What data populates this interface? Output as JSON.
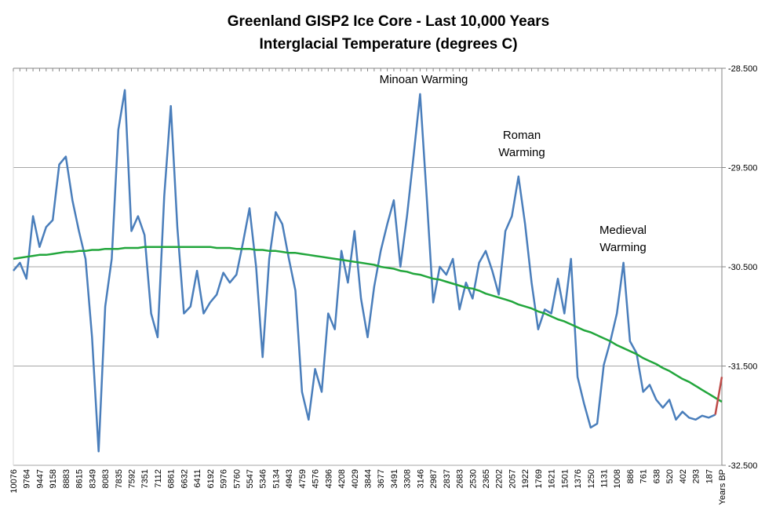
{
  "chart_data": {
    "type": "line",
    "title": [
      "Greenland GISP2 Ice Core - Last 10,000 Years",
      "Interglacial Temperature (degrees C)"
    ],
    "categories": [
      "10076",
      null,
      "9764",
      null,
      "9447",
      null,
      "9158",
      null,
      "8883",
      null,
      "8615",
      null,
      "8349",
      null,
      "8083",
      null,
      "7835",
      null,
      "7592",
      null,
      "7351",
      null,
      "7112",
      null,
      "6861",
      null,
      "6632",
      null,
      "6411",
      null,
      "6192",
      null,
      "5976",
      null,
      "5760",
      null,
      "5547",
      null,
      "5346",
      null,
      "5134",
      null,
      "4943",
      null,
      "4759",
      null,
      "4576",
      null,
      "4396",
      null,
      "4208",
      null,
      "4029",
      null,
      "3844",
      null,
      "3677",
      null,
      "3491",
      null,
      "3308",
      null,
      "3146",
      null,
      "2987",
      null,
      "2837",
      null,
      "2683",
      null,
      "2530",
      null,
      "2365",
      null,
      "2202",
      null,
      "2057",
      null,
      "1922",
      null,
      "1769",
      null,
      "1621",
      null,
      "1501",
      null,
      "1376",
      null,
      "1250",
      null,
      "1131",
      null,
      "1008",
      null,
      "886",
      null,
      "761",
      null,
      "638",
      null,
      "520",
      null,
      "402",
      null,
      "293",
      null,
      "187",
      null,
      "Years BP"
    ],
    "series": [
      {
        "color": "#4a7ebb",
        "values": [
          -30.54,
          -30.46,
          -30.62,
          -29.99,
          -30.3,
          -30.1,
          -30.03,
          -29.47,
          -29.39,
          -29.83,
          -30.14,
          -30.42,
          -31.21,
          -32.36,
          -30.9,
          -30.42,
          -29.12,
          -28.72,
          -30.14,
          -29.99,
          -30.18,
          -30.97,
          -31.21,
          -29.79,
          -28.88,
          -30.1,
          -30.97,
          -30.9,
          -30.54,
          -30.97,
          -30.86,
          -30.78,
          -30.56,
          -30.66,
          -30.58,
          -30.26,
          -29.91,
          -30.5,
          -31.41,
          -30.42,
          -29.95,
          -30.07,
          -30.42,
          -30.74,
          -31.76,
          -32.04,
          -31.53,
          -31.76,
          -30.97,
          -31.13,
          -30.34,
          -30.66,
          -30.14,
          -30.82,
          -31.21,
          -30.7,
          -30.34,
          -30.07,
          -29.83,
          -30.5,
          -29.99,
          -29.39,
          -28.76,
          -29.79,
          -30.86,
          -30.5,
          -30.58,
          -30.42,
          -30.93,
          -30.66,
          -30.82,
          -30.46,
          -30.34,
          -30.54,
          -30.78,
          -30.14,
          -29.99,
          -29.59,
          -30.07,
          -30.66,
          -31.13,
          -30.93,
          -30.97,
          -30.62,
          -30.97,
          -30.42,
          -31.61,
          -31.88,
          -32.12,
          -32.08,
          -31.49,
          -31.25,
          -30.97,
          -30.46,
          -31.25,
          -31.37,
          -31.76,
          -31.69,
          -31.84,
          -31.92,
          -31.84,
          -32.04,
          -31.96,
          -32.02,
          -32.04,
          -32.0,
          -32.02,
          -31.99,
          null
        ]
      },
      {
        "color": "#22a63c",
        "values": [
          -30.42,
          -30.41,
          -30.4,
          -30.39,
          -30.38,
          -30.38,
          -30.37,
          -30.36,
          -30.35,
          -30.35,
          -30.34,
          -30.34,
          -30.33,
          -30.33,
          -30.32,
          -30.32,
          -30.32,
          -30.31,
          -30.31,
          -30.31,
          -30.3,
          -30.3,
          -30.3,
          -30.3,
          -30.3,
          -30.3,
          -30.3,
          -30.3,
          -30.3,
          -30.3,
          -30.3,
          -30.31,
          -30.31,
          -30.31,
          -30.32,
          -30.32,
          -30.32,
          -30.33,
          -30.33,
          -30.34,
          -30.34,
          -30.35,
          -30.36,
          -30.36,
          -30.37,
          -30.38,
          -30.39,
          -30.4,
          -30.41,
          -30.42,
          -30.43,
          -30.44,
          -30.45,
          -30.46,
          -30.47,
          -30.48,
          -30.5,
          -30.51,
          -30.52,
          -30.54,
          -30.55,
          -30.57,
          -30.58,
          -30.6,
          -30.62,
          -30.63,
          -30.65,
          -30.67,
          -30.69,
          -30.71,
          -30.72,
          -30.74,
          -30.77,
          -30.79,
          -30.81,
          -30.83,
          -30.85,
          -30.88,
          -30.9,
          -30.92,
          -30.95,
          -30.97,
          -31.0,
          -31.03,
          -31.05,
          -31.08,
          -31.11,
          -31.14,
          -31.16,
          -31.19,
          -31.22,
          -31.25,
          -31.29,
          -31.32,
          -31.35,
          -31.38,
          -31.42,
          -31.45,
          -31.48,
          -31.52,
          -31.55,
          -31.59,
          -31.63,
          -31.66,
          -31.7,
          -31.74,
          -31.78,
          -31.82,
          -31.86
        ]
      },
      {
        "color": "#be4b48",
        "values": [
          null,
          null,
          null,
          null,
          null,
          null,
          null,
          null,
          null,
          null,
          null,
          null,
          null,
          null,
          null,
          null,
          null,
          null,
          null,
          null,
          null,
          null,
          null,
          null,
          null,
          null,
          null,
          null,
          null,
          null,
          null,
          null,
          null,
          null,
          null,
          null,
          null,
          null,
          null,
          null,
          null,
          null,
          null,
          null,
          null,
          null,
          null,
          null,
          null,
          null,
          null,
          null,
          null,
          null,
          null,
          null,
          null,
          null,
          null,
          null,
          null,
          null,
          null,
          null,
          null,
          null,
          null,
          null,
          null,
          null,
          null,
          null,
          null,
          null,
          null,
          null,
          null,
          null,
          null,
          null,
          null,
          null,
          null,
          null,
          null,
          null,
          null,
          null,
          null,
          null,
          null,
          null,
          null,
          null,
          null,
          null,
          null,
          null,
          null,
          null,
          null,
          null,
          null,
          null,
          null,
          null,
          null,
          -31.99,
          -31.61
        ]
      }
    ],
    "ylim": [
      -32.5,
      -28.5
    ],
    "yticks": [
      {
        "value": -32.5,
        "label": "-32.500"
      },
      {
        "value": -31.5,
        "label": "-31.500"
      },
      {
        "value": -30.5,
        "label": "-30.500"
      },
      {
        "value": -29.5,
        "label": "-29.500"
      },
      {
        "value": -28.5,
        "label": "-28.500"
      }
    ],
    "y_axis_side": "right",
    "grid": true,
    "annotations": [
      {
        "text": [
          "Minoan Warming"
        ]
      },
      {
        "text": [
          "Roman",
          "Warming"
        ]
      },
      {
        "text": [
          "Medieval",
          "Warming"
        ]
      }
    ]
  }
}
